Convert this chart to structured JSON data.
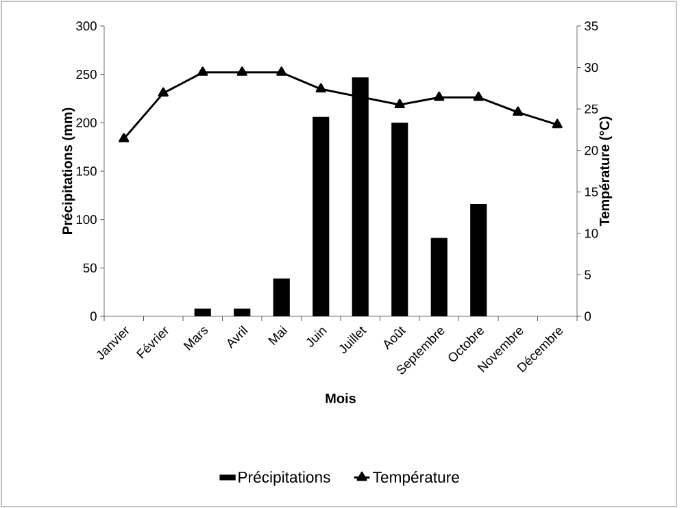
{
  "chart_data": {
    "type": "bar",
    "xlabel": "Mois",
    "ylabel": "Précipitations (mm)",
    "y2label": "Température (°C)",
    "categories": [
      "Janvier",
      "Février",
      "Mars",
      "Avril",
      "Mai",
      "Juin",
      "Juillet",
      "Août",
      "Septembre",
      "Octobre",
      "Novembre",
      "Décembre"
    ],
    "series": [
      {
        "name": "Précipitations",
        "color": "#000000",
        "values": [
          0,
          0,
          8,
          8,
          39,
          206,
          247,
          200,
          81,
          116,
          0,
          0
        ]
      },
      {
        "name": "Température",
        "type": "line",
        "axis": "y2",
        "color": "#000000",
        "values": [
          21.4,
          26.9,
          29.4,
          29.4,
          29.4,
          27.4,
          null,
          25.5,
          26.4,
          26.4,
          24.6,
          23.1
        ]
      }
    ],
    "ylim": [
      0,
      300
    ],
    "yticks": [
      0,
      50,
      100,
      150,
      200,
      250,
      300
    ],
    "y2lim": [
      0,
      35
    ],
    "y2ticks": [
      0,
      5,
      10,
      15,
      20,
      25,
      30,
      35
    ],
    "marker": "triangle",
    "legend": "bottom"
  }
}
